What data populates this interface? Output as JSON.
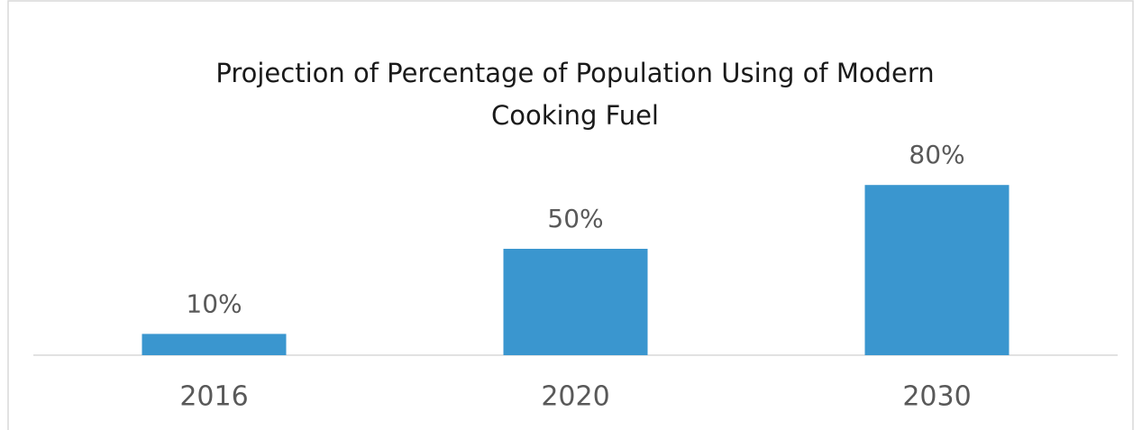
{
  "chart_data": {
    "type": "bar",
    "title": "Projection of Percentage of Population Using of Modern Cooking Fuel",
    "categories": [
      "2016",
      "2020",
      "2030"
    ],
    "values": [
      10,
      50,
      80
    ],
    "value_labels": [
      "10%",
      "50%",
      "80%"
    ],
    "color": "#3a96cf"
  }
}
